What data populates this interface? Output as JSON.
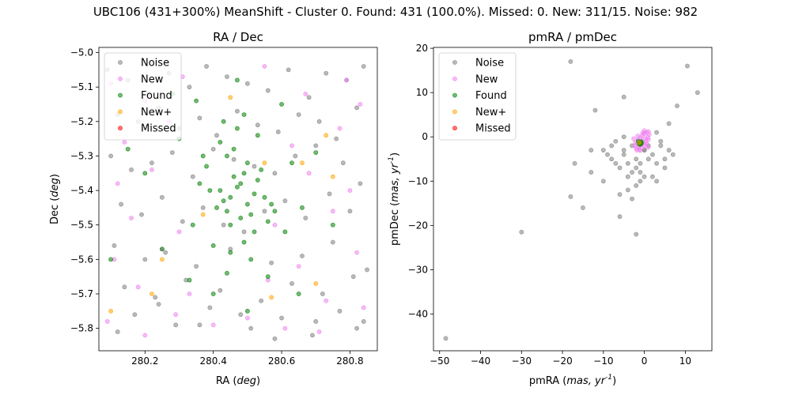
{
  "figure": {
    "suptitle": "UBC106 (431+300%) MeanShift - Cluster 0. Found: 431 (100.0%). Missed: 0. New: 311/15. Noise: 982"
  },
  "colors": {
    "Noise": "#808080",
    "New": "#ee82ee",
    "Found": "#008000",
    "New+": "#ffa500",
    "Missed": "#ff0000"
  },
  "chart_data": [
    {
      "type": "scatter",
      "title": "RA / Dec",
      "xlabel": "RA (deg)",
      "ylabel": "Dec (deg)",
      "xlim": [
        280.065,
        280.88
      ],
      "ylim": [
        -5.865,
        -4.985
      ],
      "xticks": [
        280.2,
        280.4,
        280.6,
        280.8
      ],
      "xtick_labels": [
        "280.2",
        "280.4",
        "280.6",
        "280.8"
      ],
      "yticks": [
        -5.8,
        -5.7,
        -5.6,
        -5.5,
        -5.4,
        -5.3,
        -5.2,
        -5.1,
        -5.0
      ],
      "ytick_labels": [
        "−5.8",
        "−5.7",
        "−5.6",
        "−5.5",
        "−5.4",
        "−5.3",
        "−5.2",
        "−5.1",
        "−5.0"
      ],
      "legend": "upper left",
      "series": [
        {
          "name": "Noise",
          "x": [
            280.09,
            280.15,
            280.21,
            280.27,
            280.33,
            280.38,
            280.44,
            280.5,
            280.56,
            280.62,
            280.68,
            280.73,
            280.79,
            280.84,
            280.12,
            280.18,
            280.24,
            280.3,
            280.36,
            280.41,
            280.47,
            280.53,
            280.59,
            280.65,
            280.71,
            280.76,
            280.82,
            280.1,
            280.16,
            280.22,
            280.28,
            280.34,
            280.4,
            280.46,
            280.52,
            280.58,
            280.64,
            280.7,
            280.78,
            280.83,
            280.13,
            280.19,
            280.25,
            280.31,
            280.37,
            280.43,
            280.49,
            280.55,
            280.61,
            280.67,
            280.74,
            280.8,
            280.11,
            280.2,
            280.26,
            280.35,
            280.45,
            280.57,
            280.66,
            280.75,
            280.85,
            280.14,
            280.23,
            280.32,
            280.42,
            280.54,
            280.63,
            280.72,
            280.81,
            280.17,
            280.29,
            280.39,
            280.51,
            280.6,
            280.69,
            280.77,
            280.84,
            280.12,
            280.24,
            280.36,
            280.48,
            280.58,
            280.7,
            280.82
          ],
          "y": [
            -5.05,
            -5.08,
            -5.12,
            -5.06,
            -5.1,
            -5.04,
            -5.07,
            -5.09,
            -5.11,
            -5.05,
            -5.13,
            -5.06,
            -5.08,
            -5.04,
            -5.18,
            -5.2,
            -5.16,
            -5.22,
            -5.19,
            -5.24,
            -5.17,
            -5.21,
            -5.23,
            -5.18,
            -5.2,
            -5.25,
            -5.16,
            -5.3,
            -5.34,
            -5.32,
            -5.29,
            -5.36,
            -5.28,
            -5.31,
            -5.33,
            -5.35,
            -5.3,
            -5.27,
            -5.32,
            -5.38,
            -5.44,
            -5.47,
            -5.42,
            -5.49,
            -5.45,
            -5.5,
            -5.52,
            -5.46,
            -5.43,
            -5.48,
            -5.41,
            -5.46,
            -5.56,
            -5.6,
            -5.58,
            -5.62,
            -5.57,
            -5.61,
            -5.59,
            -5.55,
            -5.63,
            -5.68,
            -5.71,
            -5.66,
            -5.69,
            -5.72,
            -5.67,
            -5.7,
            -5.65,
            -5.76,
            -5.79,
            -5.74,
            -5.8,
            -5.77,
            -5.82,
            -5.75,
            -5.78,
            -5.81,
            -5.73,
            -5.79,
            -5.76,
            -5.83,
            -5.78,
            -5.8
          ]
        },
        {
          "name": "New",
          "x": [
            280.1,
            280.2,
            280.31,
            280.55,
            280.67,
            280.79,
            280.83,
            280.14,
            280.27,
            280.63,
            280.77,
            280.12,
            280.22,
            280.68,
            280.8,
            280.16,
            280.3,
            280.58,
            280.75,
            280.11,
            280.25,
            280.65,
            280.82,
            280.18,
            280.33,
            280.56,
            280.73,
            280.09,
            280.29,
            280.61,
            280.84,
            280.2,
            280.4,
            280.5,
            280.71
          ],
          "y": [
            -5.09,
            -5.14,
            -5.07,
            -5.04,
            -5.12,
            -5.08,
            -5.15,
            -5.26,
            -5.2,
            -5.27,
            -5.22,
            -5.38,
            -5.34,
            -5.35,
            -5.4,
            -5.48,
            -5.52,
            -5.5,
            -5.46,
            -5.6,
            -5.57,
            -5.62,
            -5.58,
            -5.68,
            -5.7,
            -5.66,
            -5.72,
            -5.78,
            -5.76,
            -5.8,
            -5.74,
            -5.82,
            -5.79,
            -5.77,
            -5.81
          ]
        },
        {
          "name": "Found",
          "x": [
            280.42,
            280.45,
            280.48,
            280.5,
            280.52,
            280.46,
            280.44,
            280.49,
            280.51,
            280.47,
            280.43,
            280.53,
            280.41,
            280.55,
            280.39,
            280.57,
            280.38,
            280.45,
            280.5,
            280.48,
            280.44,
            280.52,
            280.46,
            280.49,
            280.42,
            280.54,
            280.4,
            280.56,
            280.36,
            280.58,
            280.47,
            280.51,
            280.43,
            280.45,
            280.49,
            280.53,
            280.37,
            280.61,
            280.34,
            280.63,
            280.3,
            280.66,
            280.25,
            280.7,
            280.2,
            280.75,
            280.15,
            280.1,
            280.33,
            280.6,
            280.28,
            280.65,
            280.47,
            280.5,
            280.44,
            280.56,
            280.4,
            280.35
          ],
          "y": [
            -5.4,
            -5.42,
            -5.38,
            -5.44,
            -5.41,
            -5.36,
            -5.46,
            -5.35,
            -5.47,
            -5.39,
            -5.43,
            -5.37,
            -5.45,
            -5.42,
            -5.4,
            -5.44,
            -5.33,
            -5.5,
            -5.32,
            -5.48,
            -5.3,
            -5.52,
            -5.28,
            -5.55,
            -5.26,
            -5.34,
            -5.56,
            -5.49,
            -5.38,
            -5.46,
            -5.22,
            -5.6,
            -5.2,
            -5.58,
            -5.18,
            -5.24,
            -5.3,
            -5.52,
            -5.5,
            -5.32,
            -5.25,
            -5.45,
            -5.57,
            -5.29,
            -5.35,
            -5.5,
            -5.28,
            -5.6,
            -5.66,
            -5.15,
            -5.12,
            -5.7,
            -5.08,
            -5.75,
            -5.64,
            -5.65,
            -5.7,
            -5.14
          ]
        },
        {
          "name": "New+",
          "x": [
            280.45,
            280.73,
            280.66,
            280.75,
            280.55,
            280.37,
            280.25,
            280.22,
            280.7,
            280.1,
            280.57
          ],
          "y": [
            -5.13,
            -5.24,
            -5.32,
            -5.36,
            -5.32,
            -5.47,
            -5.6,
            -5.7,
            -5.67,
            -5.75,
            -5.71
          ]
        },
        {
          "name": "Missed",
          "x": [],
          "y": []
        }
      ]
    },
    {
      "type": "scatter",
      "title": "pmRA / pmDec",
      "xlabel": "pmRA (mas, yr^-1)",
      "ylabel": "pmDec (mas, yr^-1)",
      "xlim": [
        -51.5,
        16.5
      ],
      "ylim": [
        -48.3,
        20.2
      ],
      "xticks": [
        -50,
        -40,
        -30,
        -20,
        -10,
        0,
        10
      ],
      "xtick_labels": [
        "−50",
        "−40",
        "−30",
        "−20",
        "−10",
        "0",
        "10"
      ],
      "yticks": [
        -40,
        -30,
        -20,
        -10,
        0,
        10,
        20
      ],
      "ytick_labels": [
        "−40",
        "−30",
        "−20",
        "−10",
        "0",
        "10",
        "20"
      ],
      "legend": "upper left",
      "series": [
        {
          "name": "Noise",
          "x": [
            -48.5,
            -30,
            -18,
            -13,
            -10,
            -9,
            -8,
            -7,
            -6,
            -5,
            -4,
            -3,
            -2,
            -1,
            0,
            1,
            2,
            3,
            4,
            5,
            6,
            2,
            3,
            -1,
            -5,
            -3,
            -7,
            -4,
            -2,
            0,
            -6,
            -8,
            -3,
            -2,
            -1,
            -4,
            -5,
            0,
            1,
            -18,
            -12,
            -17,
            -13,
            -10,
            10.5,
            13,
            8,
            -5,
            -15,
            -6,
            -2,
            6,
            4,
            5,
            3,
            7
          ],
          "y": [
            -45.5,
            -21.5,
            -13.5,
            -8,
            -10,
            -4,
            -5,
            -6,
            -7,
            -3,
            -9,
            -2,
            -5,
            -8,
            -3,
            -5,
            -4,
            -6,
            -2,
            -7,
            -3,
            -9,
            1,
            -6,
            -4,
            -8,
            -1,
            -12,
            -11,
            -3,
            -13,
            -2,
            -14,
            -7,
            -10,
            -6,
            0,
            -9,
            -2,
            17,
            6,
            -6,
            -3,
            -3,
            16,
            10,
            7,
            9,
            -16,
            -18,
            -22,
            3,
            -1,
            -5,
            -10,
            -4
          ]
        },
        {
          "name": "New",
          "x": [
            -2.2,
            -1.5,
            -1,
            -0.5,
            0,
            0.5,
            1,
            -2.4,
            -1.8,
            -1.2,
            -0.6,
            0.2,
            0.8,
            1.2,
            -2,
            -1.4,
            -0.8,
            -0.2,
            0.4,
            1,
            -1.8,
            -1.2,
            -0.6,
            0,
            0.6,
            -2.6,
            -1.6,
            -0.4,
            0.9,
            -1,
            0
          ],
          "y": [
            -1.2,
            -0.6,
            -0.2,
            0.3,
            0.7,
            1.0,
            1.2,
            -2.0,
            -1.6,
            -1.1,
            -0.8,
            -0.4,
            -0.1,
            0.5,
            -2.6,
            -2.3,
            -1.8,
            -1.4,
            -1.0,
            -0.6,
            -3.0,
            -2.8,
            -2.4,
            -2.0,
            -1.6,
            -0.4,
            0.2,
            0.9,
            -2.4,
            -3.1,
            1.4
          ]
        },
        {
          "name": "Found",
          "x": [
            -1.3,
            -1.0,
            -0.7,
            -1.5,
            -1.1,
            -0.8,
            -1.2,
            -0.9
          ],
          "y": [
            -1.5,
            -1.2,
            -1.4,
            -1.0,
            -1.7,
            -1.1,
            -1.3,
            -1.6
          ]
        },
        {
          "name": "New+",
          "x": [
            -1.2
          ],
          "y": [
            -1.3
          ]
        },
        {
          "name": "Missed",
          "x": [],
          "y": []
        }
      ]
    }
  ]
}
